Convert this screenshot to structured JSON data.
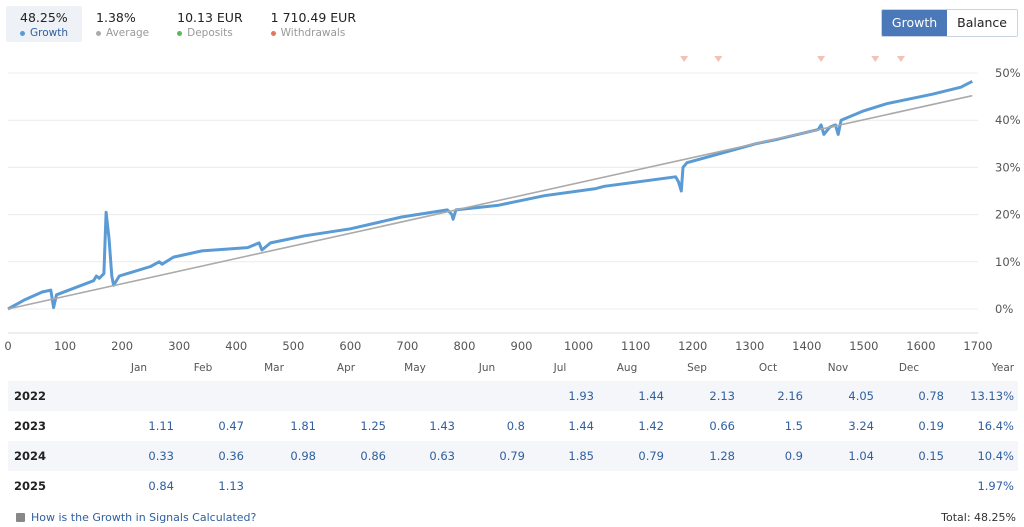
{
  "stats": [
    {
      "value": "48.25%",
      "label": "Growth",
      "color": "#5b9bd5"
    },
    {
      "value": "1.38%",
      "label": "Average",
      "color": "#aaaaaa"
    },
    {
      "value": "10.13 EUR",
      "label": "Deposits",
      "color": "#5cb85c"
    },
    {
      "value": "1 710.49 EUR",
      "label": "Withdrawals",
      "color": "#e8735f"
    }
  ],
  "toggle": {
    "growth": "Growth",
    "balance": "Balance"
  },
  "chart_data": {
    "type": "line",
    "xlabel": "",
    "ylabel": "",
    "xlim": [
      0,
      1700
    ],
    "ylim": [
      -5,
      53
    ],
    "x_ticks": [
      "0",
      "100",
      "200",
      "300",
      "400",
      "500",
      "600",
      "700",
      "800",
      "900",
      "1000",
      "1100",
      "1200",
      "1300",
      "1400",
      "1500",
      "1600",
      "1700"
    ],
    "y_ticks": [
      "50%",
      "40%",
      "30%",
      "20%",
      "10%",
      "0%"
    ],
    "y_tick_values": [
      50,
      40,
      30,
      20,
      10,
      0
    ],
    "withdrawal_markers_x": [
      1185,
      1245,
      1425,
      1520,
      1565
    ],
    "series": [
      {
        "name": "Growth",
        "color": "#5b9bd5",
        "points": [
          [
            0,
            0
          ],
          [
            30,
            2
          ],
          [
            60,
            3.6
          ],
          [
            75,
            4
          ],
          [
            80,
            0.3
          ],
          [
            85,
            3
          ],
          [
            150,
            6
          ],
          [
            155,
            7
          ],
          [
            160,
            6.5
          ],
          [
            168,
            7.5
          ],
          [
            172,
            20.5
          ],
          [
            177,
            15
          ],
          [
            182,
            7
          ],
          [
            185,
            5
          ],
          [
            195,
            7
          ],
          [
            250,
            9
          ],
          [
            265,
            10
          ],
          [
            270,
            9.5
          ],
          [
            290,
            11
          ],
          [
            340,
            12.3
          ],
          [
            420,
            13
          ],
          [
            440,
            14
          ],
          [
            445,
            12.5
          ],
          [
            460,
            14
          ],
          [
            520,
            15.5
          ],
          [
            600,
            17
          ],
          [
            690,
            19.5
          ],
          [
            770,
            21
          ],
          [
            778,
            20
          ],
          [
            780,
            19
          ],
          [
            785,
            21
          ],
          [
            860,
            22
          ],
          [
            940,
            24
          ],
          [
            1030,
            25.5
          ],
          [
            1045,
            26
          ],
          [
            1170,
            28
          ],
          [
            1175,
            27
          ],
          [
            1180,
            25
          ],
          [
            1183,
            30
          ],
          [
            1190,
            31
          ],
          [
            1280,
            34
          ],
          [
            1310,
            35
          ],
          [
            1350,
            36
          ],
          [
            1420,
            38
          ],
          [
            1425,
            39
          ],
          [
            1430,
            37
          ],
          [
            1440,
            38.5
          ],
          [
            1450,
            39
          ],
          [
            1455,
            37
          ],
          [
            1460,
            40
          ],
          [
            1480,
            41
          ],
          [
            1500,
            42
          ],
          [
            1540,
            43.5
          ],
          [
            1560,
            44
          ],
          [
            1620,
            45.5
          ],
          [
            1670,
            47
          ],
          [
            1690,
            48.25
          ]
        ]
      },
      {
        "name": "Average",
        "color": "#aaaaaa",
        "points": [
          [
            0,
            0
          ],
          [
            1690,
            45.2
          ]
        ]
      }
    ]
  },
  "months": [
    "Jan",
    "Feb",
    "Mar",
    "Apr",
    "May",
    "Jun",
    "Jul",
    "Aug",
    "Sep",
    "Oct",
    "Nov",
    "Dec",
    "Year"
  ],
  "table": [
    {
      "year": "2022",
      "cells": [
        "",
        "",
        "",
        "",
        "",
        "",
        "1.93",
        "1.44",
        "2.13",
        "2.16",
        "4.05",
        "0.78"
      ],
      "total": "13.13%"
    },
    {
      "year": "2023",
      "cells": [
        "1.11",
        "0.47",
        "1.81",
        "1.25",
        "1.43",
        "0.8",
        "1.44",
        "1.42",
        "0.66",
        "1.5",
        "3.24",
        "0.19"
      ],
      "total": "16.4%"
    },
    {
      "year": "2024",
      "cells": [
        "0.33",
        "0.36",
        "0.98",
        "0.86",
        "0.63",
        "0.79",
        "1.85",
        "0.79",
        "1.28",
        "0.9",
        "1.04",
        "0.15"
      ],
      "total": "10.4%"
    },
    {
      "year": "2025",
      "cells": [
        "0.84",
        "1.13",
        "",
        "",
        "",
        "",
        "",
        "",
        "",
        "",
        "",
        ""
      ],
      "total": "1.97%"
    }
  ],
  "footer": {
    "link": "How is the Growth in Signals Calculated?",
    "total_label": "Total:",
    "total_value": "48.25%"
  }
}
